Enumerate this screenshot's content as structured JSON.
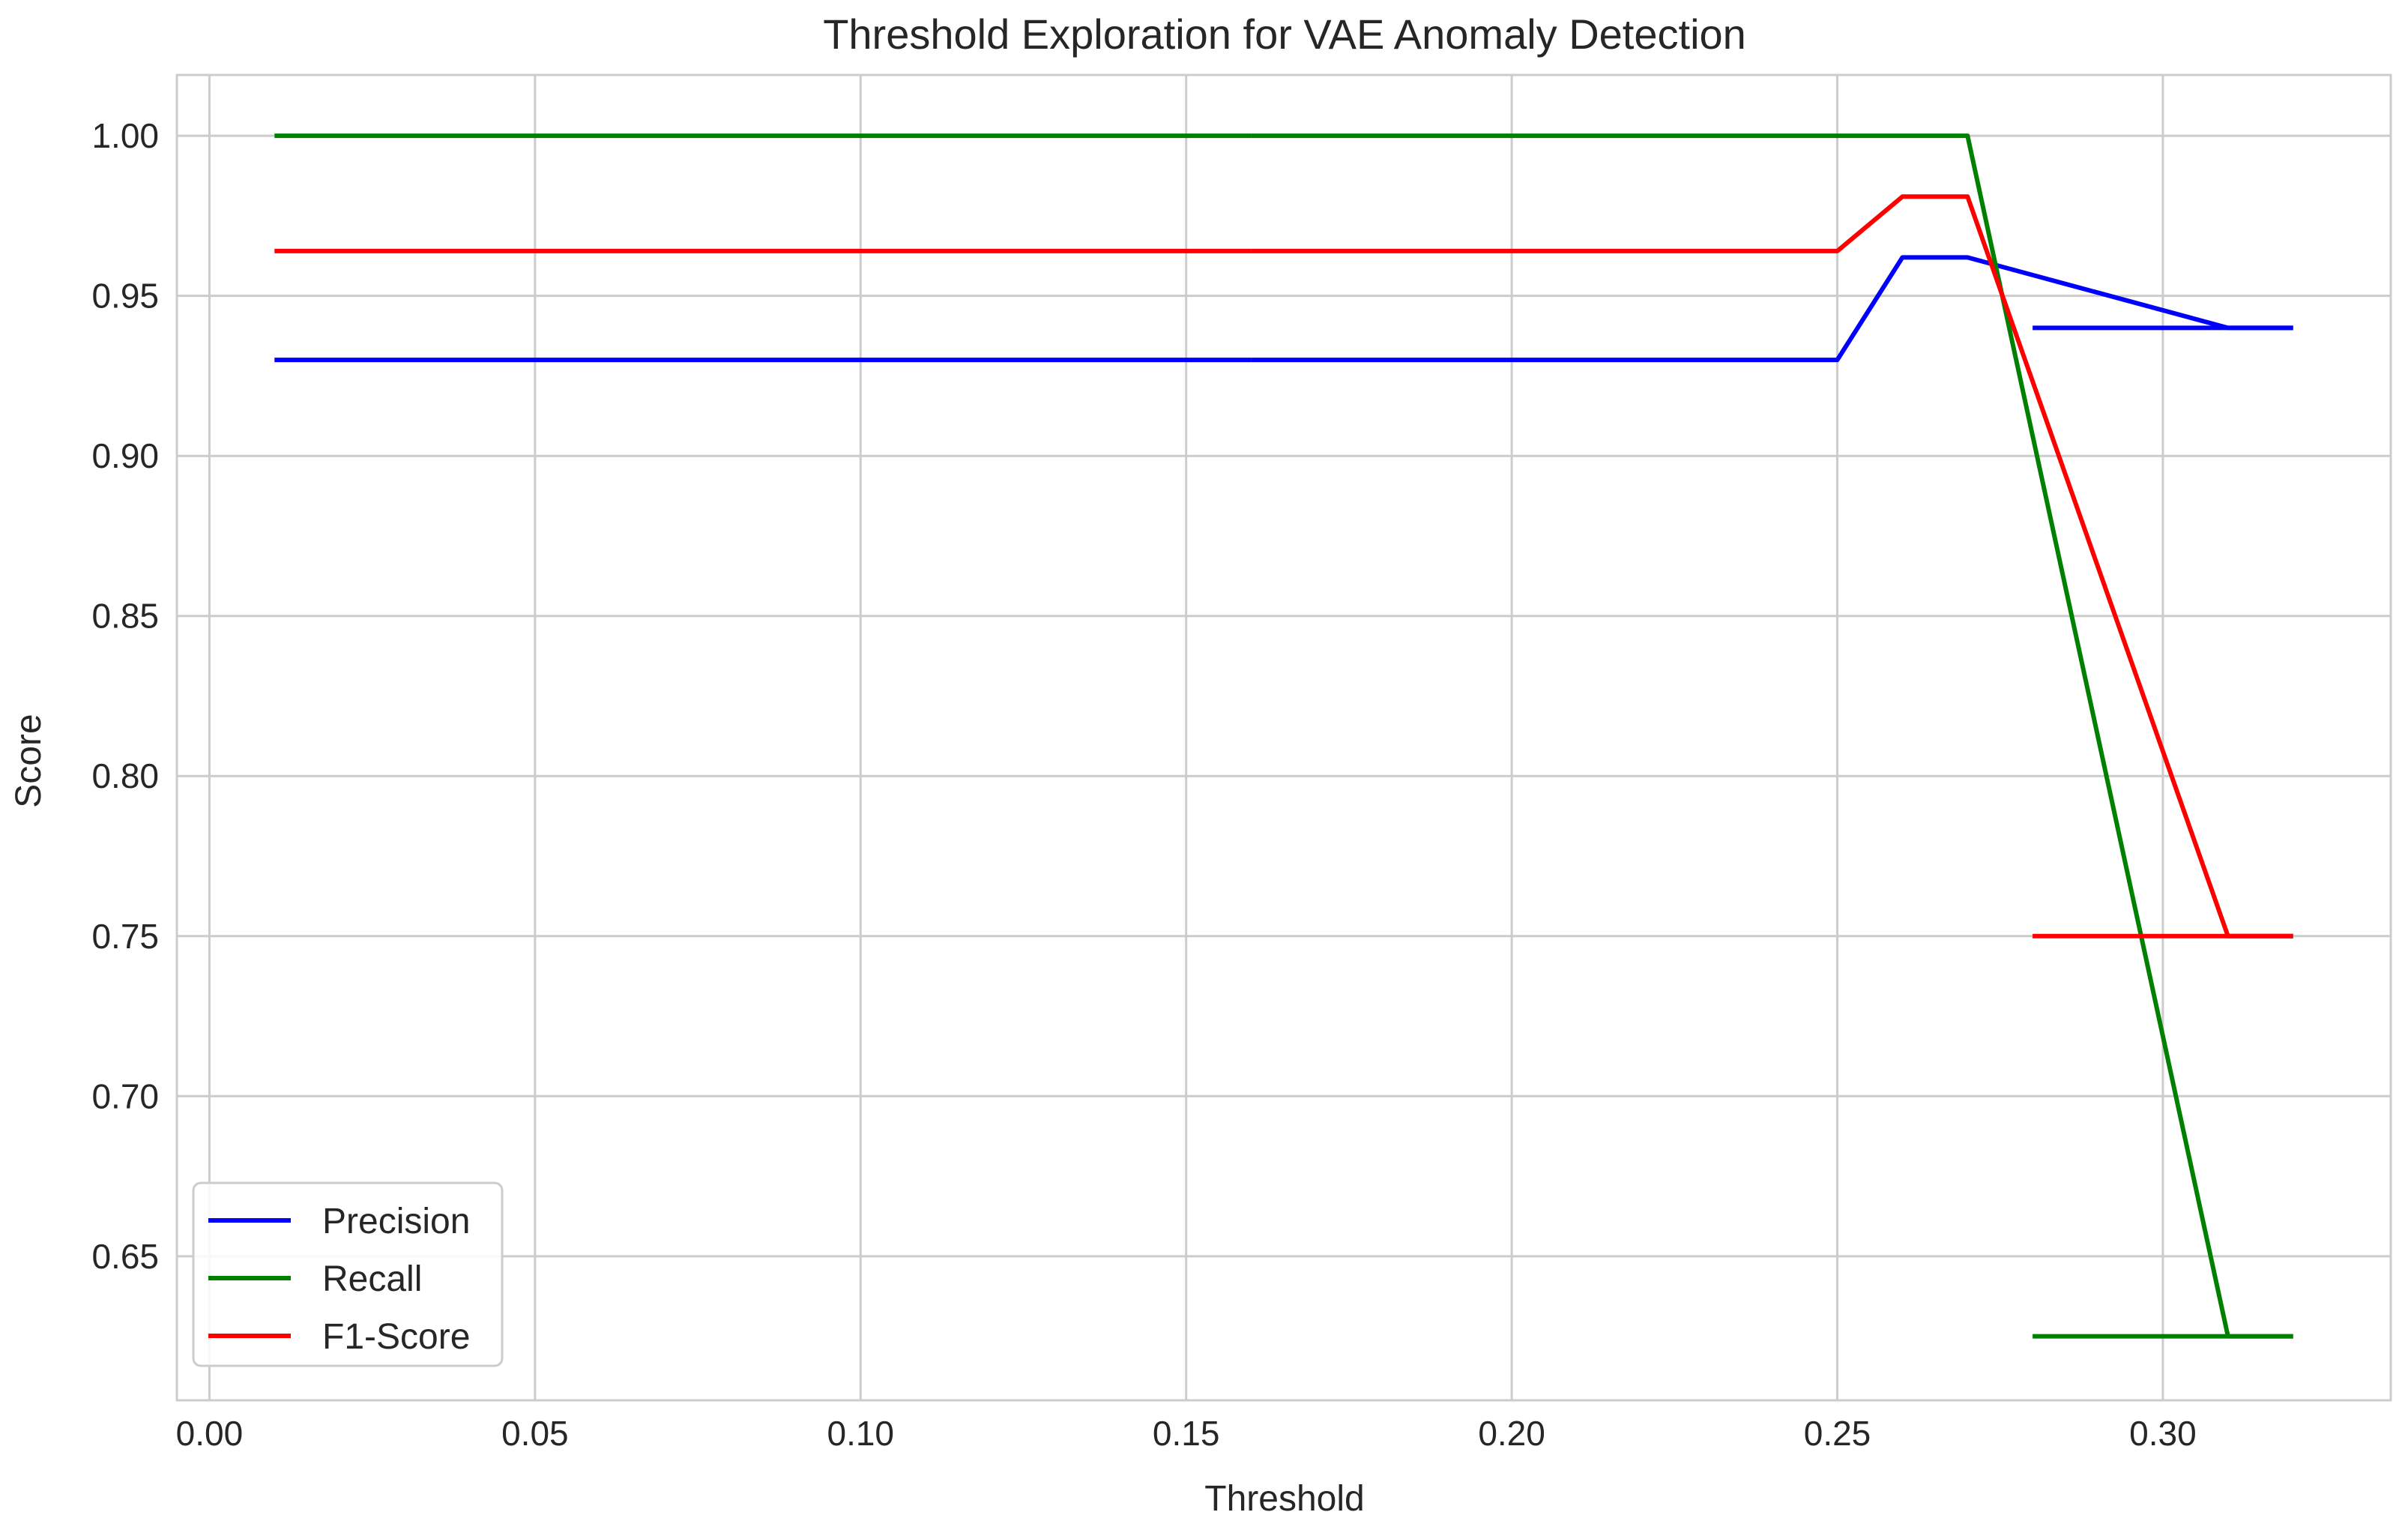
{
  "chart_data": {
    "type": "line",
    "title": "Threshold Exploration for VAE Anomaly Detection",
    "xlabel": "Threshold",
    "ylabel": "Score",
    "xlim": [
      -0.005,
      0.335
    ],
    "ylim": [
      0.605,
      1.019
    ],
    "x_ticks": [
      0.0,
      0.05,
      0.1,
      0.15,
      0.2,
      0.25,
      0.3
    ],
    "x_tick_labels": [
      "0.00",
      "0.05",
      "0.10",
      "0.15",
      "0.20",
      "0.25",
      "0.30"
    ],
    "y_ticks": [
      0.65,
      0.7,
      0.75,
      0.8,
      0.85,
      0.9,
      0.95,
      1.0
    ],
    "y_tick_labels": [
      "0.65",
      "0.70",
      "0.75",
      "0.80",
      "0.85",
      "0.90",
      "0.95",
      "1.00"
    ],
    "grid": true,
    "legend_position": "lower-left",
    "x": [
      0.01,
      0.02,
      0.03,
      0.04,
      0.05,
      0.06,
      0.07,
      0.08,
      0.09,
      0.1,
      0.11,
      0.12,
      0.13,
      0.14,
      0.15,
      0.16,
      0.17,
      0.18,
      0.19,
      0.2,
      0.21,
      0.22,
      0.23,
      0.24,
      0.25,
      0.26,
      0.27,
      0.28,
      0.29,
      0.3,
      0.31,
      0.32
    ],
    "series": [
      {
        "name": "Precision",
        "color": "#0000ff",
        "segments": [
          {
            "x": [
              0.01,
              0.16
            ],
            "y": [
              0.93,
              0.93
            ]
          },
          {
            "x": [
              0.16,
              0.25,
              0.26,
              0.27,
              0.31,
              0.32
            ],
            "y": [
              0.93,
              0.93,
              0.962,
              0.962,
              0.94,
              0.94
            ]
          },
          {
            "x": [
              0.28,
              0.32
            ],
            "y": [
              0.94,
              0.94
            ]
          }
        ]
      },
      {
        "name": "Recall",
        "color": "#008000",
        "segments": [
          {
            "x": [
              0.01,
              0.16
            ],
            "y": [
              1.0,
              1.0
            ]
          },
          {
            "x": [
              0.16,
              0.27,
              0.31,
              0.32
            ],
            "y": [
              1.0,
              1.0,
              0.625,
              0.625
            ]
          },
          {
            "x": [
              0.28,
              0.32
            ],
            "y": [
              0.625,
              0.625
            ]
          }
        ]
      },
      {
        "name": "F1-Score",
        "color": "#ff0000",
        "segments": [
          {
            "x": [
              0.01,
              0.16
            ],
            "y": [
              0.964,
              0.964
            ]
          },
          {
            "x": [
              0.16,
              0.25,
              0.26,
              0.27,
              0.31,
              0.32
            ],
            "y": [
              0.964,
              0.964,
              0.981,
              0.981,
              0.75,
              0.75
            ]
          },
          {
            "x": [
              0.28,
              0.32
            ],
            "y": [
              0.75,
              0.75
            ]
          }
        ]
      }
    ]
  }
}
